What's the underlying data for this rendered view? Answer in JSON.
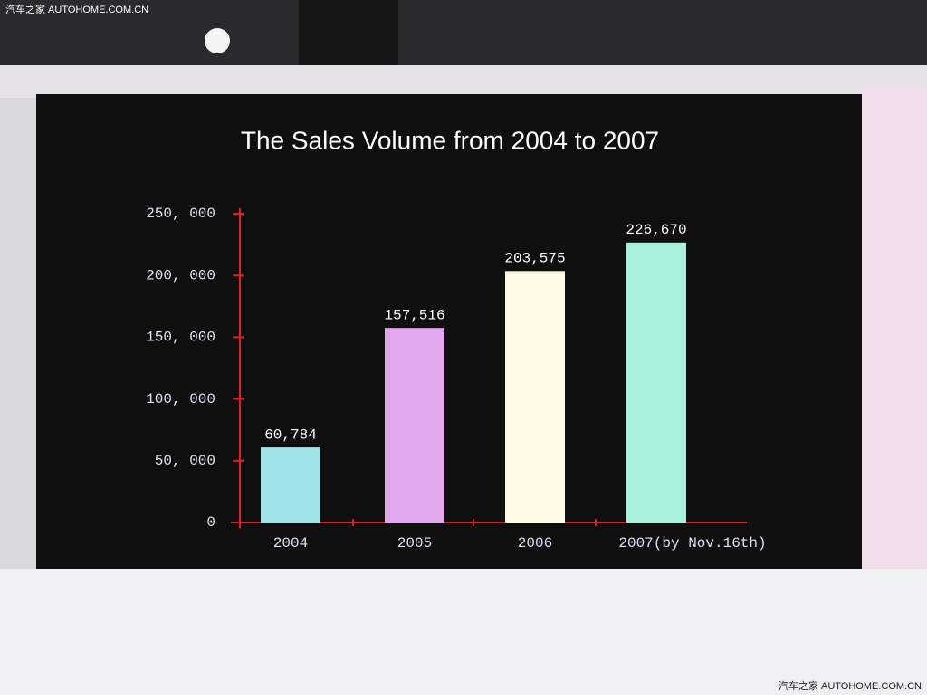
{
  "chart_data": {
    "type": "bar",
    "title": "The Sales Volume from 2004 to 2007",
    "categories": [
      "2004",
      "2005",
      "2006",
      "2007(by Nov.16th)"
    ],
    "values": [
      60784,
      157516,
      203575,
      226670
    ],
    "value_labels": [
      "60,784",
      "157,516",
      "203,575",
      "226,670"
    ],
    "colors": [
      "#9fe3e6",
      "#e2a6ec",
      "#fffbe8",
      "#a8f0dc"
    ],
    "axis_color": "#e02020",
    "ylim": [
      0,
      250000
    ],
    "yticks": [
      {
        "value": 0,
        "label": "0"
      },
      {
        "value": 50000,
        "label": "50, 000"
      },
      {
        "value": 100000,
        "label": "100, 000"
      },
      {
        "value": 150000,
        "label": "150, 000"
      },
      {
        "value": 200000,
        "label": "200, 000"
      },
      {
        "value": 250000,
        "label": "250, 000"
      }
    ]
  },
  "watermarks": [
    "汽车之家 AUTOHOME.COM.CN",
    "汽车之家 AUTOHOME.COM.CN"
  ]
}
